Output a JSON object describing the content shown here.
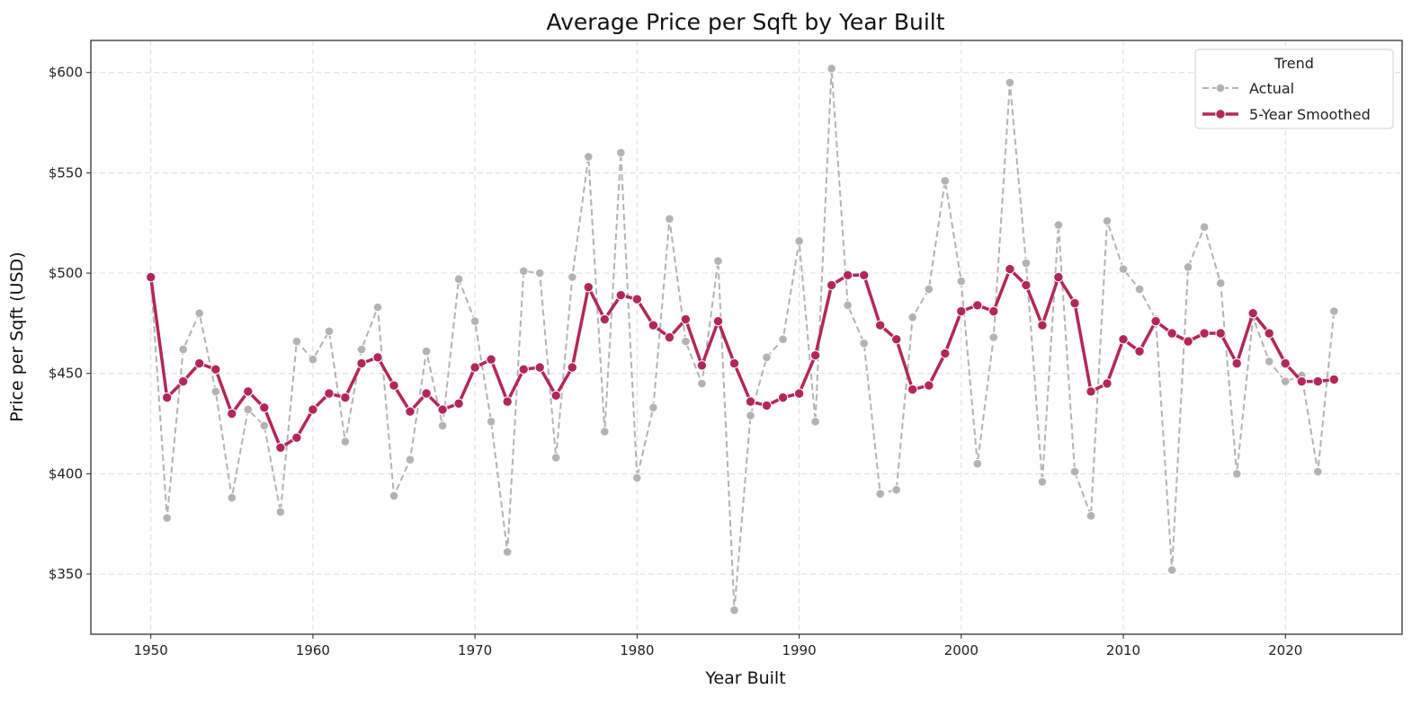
{
  "chart_data": {
    "type": "line",
    "title": "Average Price per Sqft by Year Built",
    "xlabel": "Year Built",
    "ylabel": "Price per Sqft (USD)",
    "xlim": [
      1946.3,
      2027.2
    ],
    "ylim": [
      320,
      616
    ],
    "x_ticks": [
      1950,
      1960,
      1970,
      1980,
      1990,
      2000,
      2010,
      2020
    ],
    "x_tick_labels": [
      "1950",
      "1960",
      "1970",
      "1980",
      "1990",
      "2000",
      "2010",
      "2020"
    ],
    "y_ticks": [
      350,
      400,
      450,
      500,
      550,
      600
    ],
    "y_tick_labels": [
      "$350",
      "$400",
      "$450",
      "$500",
      "$550",
      "$600"
    ],
    "grid": true,
    "legend": {
      "title": "Trend",
      "position": "top-right"
    },
    "x": [
      1950,
      1951,
      1952,
      1953,
      1954,
      1955,
      1956,
      1957,
      1958,
      1959,
      1960,
      1961,
      1962,
      1963,
      1964,
      1965,
      1966,
      1967,
      1968,
      1969,
      1970,
      1971,
      1972,
      1973,
      1974,
      1975,
      1976,
      1977,
      1978,
      1979,
      1980,
      1981,
      1982,
      1983,
      1984,
      1985,
      1986,
      1987,
      1988,
      1989,
      1990,
      1991,
      1992,
      1993,
      1994,
      1995,
      1996,
      1997,
      1998,
      1999,
      2000,
      2001,
      2002,
      2003,
      2004,
      2005,
      2006,
      2007,
      2008,
      2009,
      2010,
      2011,
      2012,
      2013,
      2014,
      2015,
      2016,
      2017,
      2018,
      2019,
      2020,
      2021,
      2022,
      2023
    ],
    "series": [
      {
        "name": "Actual",
        "color": "#b3b3b3",
        "style": "dashed",
        "values": [
          498,
          378,
          462,
          480,
          441,
          388,
          432,
          424,
          381,
          466,
          457,
          471,
          416,
          462,
          483,
          389,
          407,
          461,
          424,
          497,
          476,
          426,
          361,
          501,
          500,
          408,
          498,
          558,
          421,
          560,
          398,
          433,
          527,
          466,
          445,
          506,
          332,
          429,
          458,
          467,
          516,
          426,
          602,
          484,
          465,
          390,
          392,
          478,
          492,
          546,
          496,
          405,
          468,
          595,
          505,
          396,
          524,
          401,
          379,
          526,
          502,
          492,
          477,
          352,
          503,
          523,
          495,
          400,
          478,
          456,
          446,
          449,
          401,
          481
        ]
      },
      {
        "name": "5-Year Smoothed",
        "color": "#b2275a",
        "style": "solid",
        "values": [
          498,
          438,
          446,
          455,
          452,
          430,
          441,
          433,
          413,
          418,
          432,
          440,
          438,
          455,
          458,
          444,
          431,
          440,
          432,
          435,
          453,
          457,
          436,
          452,
          453,
          439,
          453,
          493,
          477,
          489,
          487,
          474,
          468,
          477,
          454,
          476,
          455,
          436,
          434,
          438,
          440,
          459,
          494,
          499,
          499,
          474,
          467,
          442,
          444,
          460,
          481,
          484,
          481,
          502,
          494,
          474,
          498,
          485,
          441,
          445,
          467,
          461,
          476,
          470,
          466,
          470,
          470,
          455,
          480,
          470,
          455,
          446,
          446,
          447
        ]
      }
    ]
  }
}
